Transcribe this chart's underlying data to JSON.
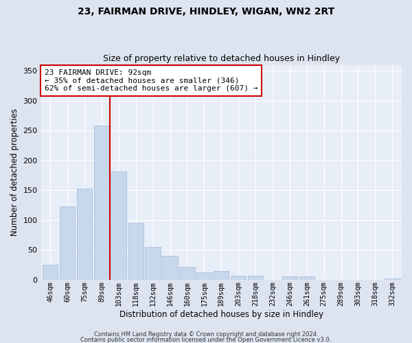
{
  "title": "23, FAIRMAN DRIVE, HINDLEY, WIGAN, WN2 2RT",
  "subtitle": "Size of property relative to detached houses in Hindley",
  "xlabel": "Distribution of detached houses by size in Hindley",
  "ylabel": "Number of detached properties",
  "bar_labels": [
    "46sqm",
    "60sqm",
    "75sqm",
    "89sqm",
    "103sqm",
    "118sqm",
    "132sqm",
    "146sqm",
    "160sqm",
    "175sqm",
    "189sqm",
    "203sqm",
    "218sqm",
    "232sqm",
    "246sqm",
    "261sqm",
    "275sqm",
    "289sqm",
    "303sqm",
    "318sqm",
    "332sqm"
  ],
  "bar_values": [
    25,
    123,
    153,
    258,
    181,
    95,
    55,
    40,
    22,
    12,
    14,
    6,
    6,
    0,
    5,
    5,
    0,
    0,
    0,
    0,
    2
  ],
  "bar_color": "#c8d8ec",
  "bar_edge_color": "#aabdd8",
  "vline_x": 3.5,
  "vline_color": "#cc0000",
  "ylim": [
    0,
    360
  ],
  "yticks": [
    0,
    50,
    100,
    150,
    200,
    250,
    300,
    350
  ],
  "annotation_title": "23 FAIRMAN DRIVE: 92sqm",
  "annotation_line1": "← 35% of detached houses are smaller (346)",
  "annotation_line2": "62% of semi-detached houses are larger (607) →",
  "annotation_box_facecolor": "#ffffff",
  "annotation_box_edgecolor": "#cc0000",
  "footer1": "Contains HM Land Registry data © Crown copyright and database right 2024.",
  "footer2": "Contains public sector information licensed under the Open Government Licence v3.0.",
  "plot_bg_color": "#e8eef8",
  "fig_bg_color": "#dde4f0",
  "grid_color": "#ffffff",
  "title_fontsize": 10,
  "subtitle_fontsize": 9
}
